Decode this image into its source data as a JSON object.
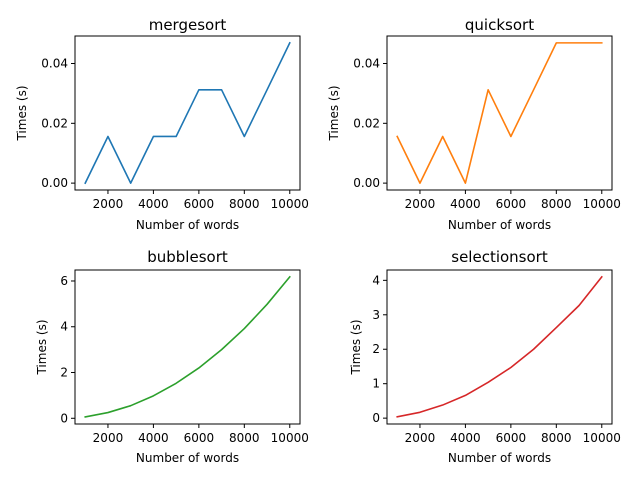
{
  "chart_data": [
    {
      "type": "line",
      "title": "mergesort",
      "xlabel": "Number of words",
      "ylabel": "Times (s)",
      "color": "#1f77b4",
      "x": [
        1000,
        2000,
        3000,
        4000,
        5000,
        6000,
        7000,
        8000,
        9000,
        10000
      ],
      "y": [
        0.0,
        0.0156,
        0.0,
        0.0156,
        0.0156,
        0.0312,
        0.0312,
        0.0156,
        0.0312,
        0.0469
      ],
      "xlim": [
        550,
        10450
      ],
      "ylim": [
        -0.0023,
        0.0492
      ],
      "xticks": [
        2000,
        4000,
        6000,
        8000,
        10000
      ],
      "xtick_labels": [
        "2000",
        "4000",
        "6000",
        "8000",
        "10000"
      ],
      "yticks": [
        0.0,
        0.02,
        0.04
      ],
      "ytick_labels": [
        "0.00",
        "0.02",
        "0.04"
      ]
    },
    {
      "type": "line",
      "title": "quicksort",
      "xlabel": "Number of words",
      "ylabel": "Times (s)",
      "color": "#ff7f0e",
      "x": [
        1000,
        2000,
        3000,
        4000,
        5000,
        6000,
        7000,
        8000,
        9000,
        10000
      ],
      "y": [
        0.0156,
        0.0,
        0.0156,
        0.0,
        0.0312,
        0.0156,
        0.0312,
        0.0469,
        0.0469,
        0.0469
      ],
      "xlim": [
        550,
        10450
      ],
      "ylim": [
        -0.0023,
        0.0492
      ],
      "xticks": [
        2000,
        4000,
        6000,
        8000,
        10000
      ],
      "xtick_labels": [
        "2000",
        "4000",
        "6000",
        "8000",
        "10000"
      ],
      "yticks": [
        0.0,
        0.02,
        0.04
      ],
      "ytick_labels": [
        "0.00",
        "0.02",
        "0.04"
      ]
    },
    {
      "type": "line",
      "title": "bubblesort",
      "xlabel": "Number of words",
      "ylabel": "Times (s)",
      "color": "#2ca02c",
      "x": [
        1000,
        2000,
        3000,
        4000,
        5000,
        6000,
        7000,
        8000,
        9000,
        10000
      ],
      "y": [
        0.06,
        0.25,
        0.55,
        0.98,
        1.53,
        2.2,
        3.0,
        3.92,
        4.98,
        6.18
      ],
      "xlim": [
        550,
        10450
      ],
      "ylim": [
        -0.25,
        6.48
      ],
      "xticks": [
        2000,
        4000,
        6000,
        8000,
        10000
      ],
      "xtick_labels": [
        "2000",
        "4000",
        "6000",
        "8000",
        "10000"
      ],
      "yticks": [
        0,
        2,
        4,
        6
      ],
      "ytick_labels": [
        "0",
        "2",
        "4",
        "6"
      ]
    },
    {
      "type": "line",
      "title": "selectionsort",
      "xlabel": "Number of words",
      "ylabel": "Times (s)",
      "color": "#d62728",
      "x": [
        1000,
        2000,
        3000,
        4000,
        5000,
        6000,
        7000,
        8000,
        9000,
        10000
      ],
      "y": [
        0.04,
        0.17,
        0.38,
        0.66,
        1.04,
        1.47,
        2.0,
        2.63,
        3.27,
        4.1
      ],
      "xlim": [
        550,
        10450
      ],
      "ylim": [
        -0.17,
        4.3
      ],
      "xticks": [
        2000,
        4000,
        6000,
        8000,
        10000
      ],
      "xtick_labels": [
        "2000",
        "4000",
        "6000",
        "8000",
        "10000"
      ],
      "yticks": [
        0,
        1,
        2,
        3,
        4
      ],
      "ytick_labels": [
        "0",
        "1",
        "2",
        "3",
        "4"
      ]
    }
  ]
}
